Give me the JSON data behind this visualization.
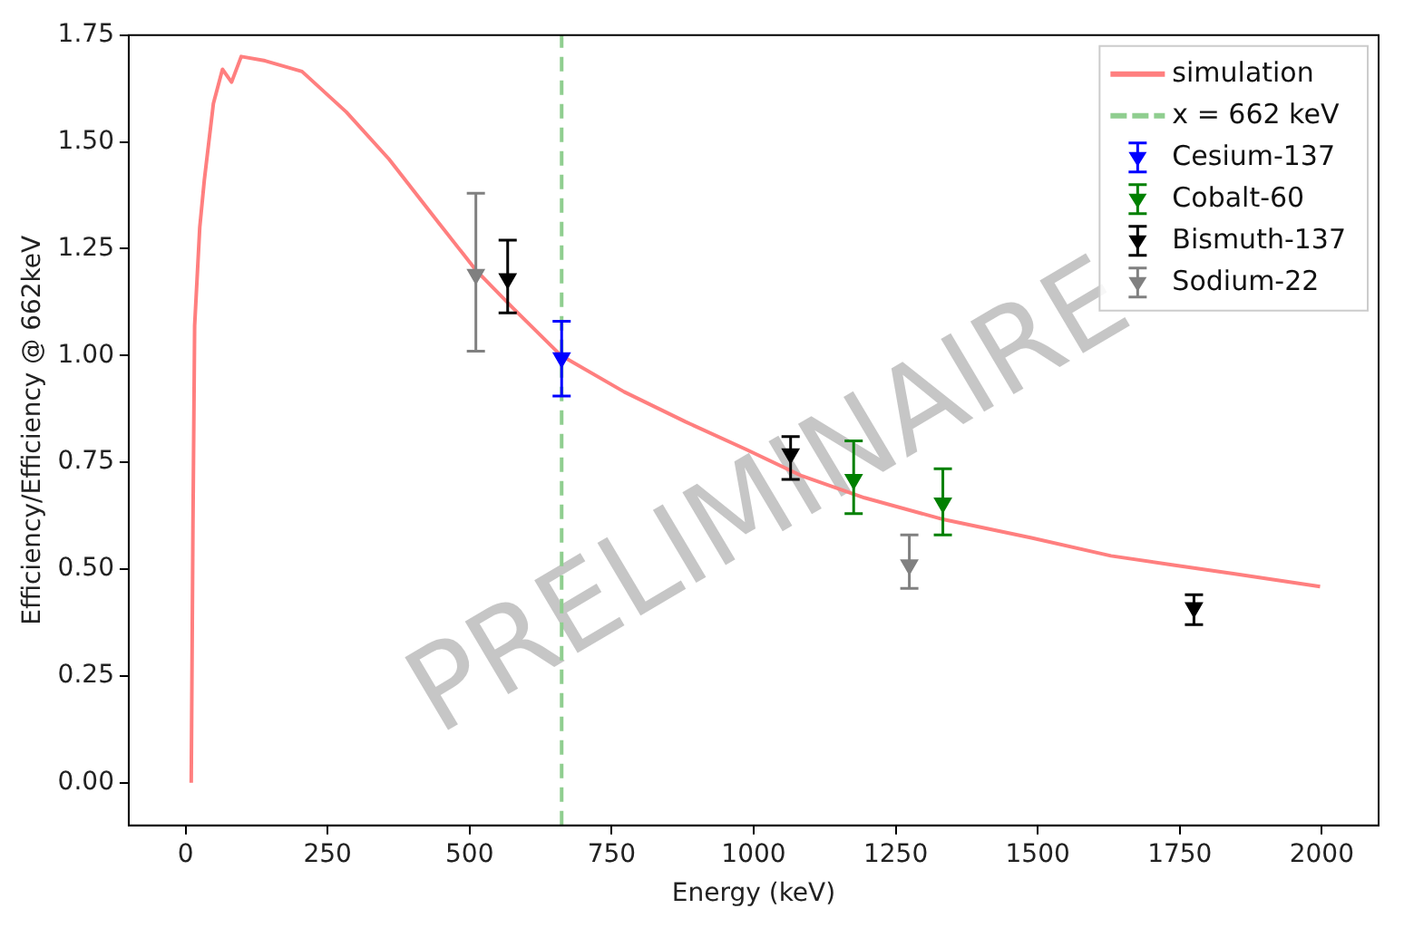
{
  "chart_data": {
    "type": "scatter",
    "xlabel": "Energy (keV)",
    "ylabel": "Efficiency/Efficiency @ 662keV",
    "xlim": [
      -100,
      2100
    ],
    "ylim": [
      -0.1,
      1.75
    ],
    "xticks": [
      0,
      250,
      500,
      750,
      1000,
      1250,
      1500,
      1750,
      2000
    ],
    "yticks": [
      {
        "value": 0,
        "label": "0.00"
      },
      0.25,
      {
        "value": 0.5,
        "label": "0.50"
      },
      0.75,
      {
        "value": 1,
        "label": "1.00"
      },
      1.25,
      {
        "value": 1.5,
        "label": "1.50"
      },
      1.75
    ],
    "grid": false,
    "legend": "top right",
    "marker": "triangle",
    "annotations": [
      "PRELIMINAIRE"
    ],
    "series": [
      {
        "name": "simulation",
        "type": "line",
        "marker": "none",
        "color": "#ff7f7f",
        "x": [
          10,
          13,
          16,
          25,
          33,
          49,
          65,
          81,
          98,
          140,
          205,
          283,
          358,
          446,
          511,
          577,
          661,
          772,
          880,
          987,
          1085,
          1195,
          1335,
          1489,
          1629,
          1736,
          1847,
          1997
        ],
        "values": [
          0,
          0.6,
          1.07,
          1.3,
          1.41,
          1.59,
          1.67,
          1.64,
          1.7,
          1.69,
          1.665,
          1.57,
          1.46,
          1.31,
          1.2,
          1.11,
          1.0,
          0.915,
          0.845,
          0.78,
          0.718,
          0.667,
          0.616,
          0.573,
          0.531,
          0.51,
          0.489,
          0.459
        ]
      },
      {
        "name": "x = 662 keV",
        "type": "line",
        "marker": "none",
        "line_style": "dashed",
        "color": "#8fce8f",
        "x": [
          662,
          662
        ],
        "values": [
          -0.1,
          1.75
        ]
      },
      {
        "name": "Cesium-137",
        "color": "#0000ff",
        "x": [
          662
        ],
        "values": [
          0.995
        ],
        "errors": [
          [
            0.905,
            1.08
          ]
        ]
      },
      {
        "name": "Cobalt-60",
        "color": "#008000",
        "x": [
          1176,
          1333
        ],
        "values": [
          0.71,
          0.655
        ],
        "errors": [
          [
            0.63,
            0.8
          ],
          [
            0.58,
            0.735
          ]
        ]
      },
      {
        "name": "Bismuth-137",
        "color": "#000000",
        "x": [
          567,
          1065,
          1775
        ],
        "values": [
          1.18,
          0.77,
          0.41
        ],
        "errors": [
          [
            1.1,
            1.27
          ],
          [
            0.71,
            0.81
          ],
          [
            0.37,
            0.44
          ]
        ]
      },
      {
        "name": "Sodium-22",
        "color": "#808080",
        "x": [
          511,
          1274
        ],
        "values": [
          1.19,
          0.51
        ],
        "errors": [
          [
            1.01,
            1.38
          ],
          [
            0.455,
            0.58
          ]
        ]
      }
    ]
  }
}
